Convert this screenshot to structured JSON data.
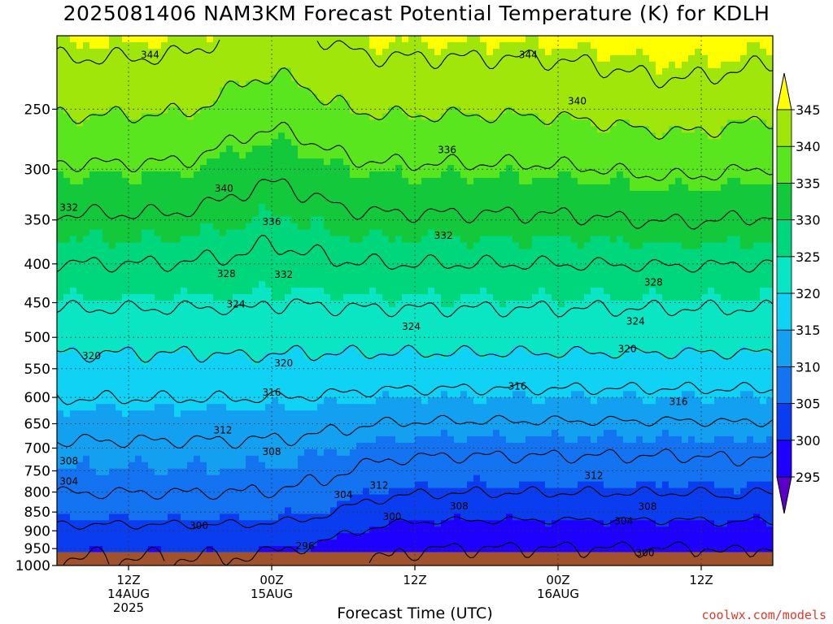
{
  "chart_data": {
    "type": "heatmap",
    "title": "2025081406 NAM3KM Forecast Potential Temperature (K) for KDLH",
    "xlabel": "Forecast Time (UTC)",
    "ylabel": "",
    "watermark": "coolwx.com/models",
    "y_axis": {
      "unit": "hPa",
      "scale": "log",
      "range": [
        1000,
        200
      ],
      "ticks": [
        250,
        300,
        350,
        400,
        450,
        500,
        550,
        600,
        650,
        700,
        750,
        800,
        850,
        900,
        950,
        1000
      ]
    },
    "x_axis": {
      "range_hours": [
        0,
        60
      ],
      "ticks": [
        {
          "hour": 6,
          "lines": [
            "12Z",
            "14AUG",
            "2025"
          ]
        },
        {
          "hour": 18,
          "lines": [
            "00Z",
            "15AUG"
          ]
        },
        {
          "hour": 30,
          "lines": [
            "12Z"
          ]
        },
        {
          "hour": 42,
          "lines": [
            "00Z",
            "16AUG"
          ]
        },
        {
          "hour": 54,
          "lines": [
            "12Z"
          ]
        }
      ]
    },
    "grid": true,
    "colorbar": {
      "placement": "right",
      "levels": [
        295,
        300,
        305,
        310,
        315,
        320,
        325,
        330,
        335,
        340,
        345
      ],
      "colors": [
        "#5a00c8",
        "#1e00ff",
        "#0a3cf0",
        "#1473f0",
        "#14a0f0",
        "#0fd2f5",
        "#0ae6c3",
        "#00d77d",
        "#14c83c",
        "#5ae61e",
        "#a0e60a",
        "#ffff00"
      ]
    },
    "ground": {
      "below_pressure": 960,
      "color": "#a0522d"
    },
    "contours": {
      "interval": 4,
      "levels": [
        296,
        300,
        304,
        308,
        312,
        316,
        320,
        324,
        328,
        332,
        336,
        340,
        344
      ],
      "labels": [
        {
          "value": "344",
          "hour": 7.8,
          "p": 212
        },
        {
          "value": "344",
          "hour": 39.5,
          "p": 212
        },
        {
          "value": "340",
          "hour": 43.6,
          "p": 244
        },
        {
          "value": "340",
          "hour": 14,
          "p": 318
        },
        {
          "value": "336",
          "hour": 32.7,
          "p": 283
        },
        {
          "value": "336",
          "hour": 18,
          "p": 352
        },
        {
          "value": "332",
          "hour": 1,
          "p": 337
        },
        {
          "value": "332",
          "hour": 32.4,
          "p": 367
        },
        {
          "value": "332",
          "hour": 19,
          "p": 413
        },
        {
          "value": "328",
          "hour": 14.2,
          "p": 412
        },
        {
          "value": "328",
          "hour": 50,
          "p": 423
        },
        {
          "value": "324",
          "hour": 15,
          "p": 452
        },
        {
          "value": "324",
          "hour": 29.7,
          "p": 484
        },
        {
          "value": "324",
          "hour": 48.5,
          "p": 476
        },
        {
          "value": "320",
          "hour": 2.9,
          "p": 529
        },
        {
          "value": "320",
          "hour": 19,
          "p": 541
        },
        {
          "value": "320",
          "hour": 47.8,
          "p": 518
        },
        {
          "value": "316",
          "hour": 18,
          "p": 591
        },
        {
          "value": "316",
          "hour": 38.6,
          "p": 580
        },
        {
          "value": "316",
          "hour": 52.1,
          "p": 608
        },
        {
          "value": "312",
          "hour": 13.9,
          "p": 663
        },
        {
          "value": "312",
          "hour": 27,
          "p": 784
        },
        {
          "value": "312",
          "hour": 45,
          "p": 761
        },
        {
          "value": "308",
          "hour": 1,
          "p": 728
        },
        {
          "value": "308",
          "hour": 18,
          "p": 708
        },
        {
          "value": "308",
          "hour": 33.7,
          "p": 835
        },
        {
          "value": "308",
          "hour": 49.5,
          "p": 836
        },
        {
          "value": "304",
          "hour": 1,
          "p": 775
        },
        {
          "value": "304",
          "hour": 24,
          "p": 807
        },
        {
          "value": "304",
          "hour": 47.5,
          "p": 874
        },
        {
          "value": "300",
          "hour": 11.9,
          "p": 886
        },
        {
          "value": "300",
          "hour": 28.1,
          "p": 862
        },
        {
          "value": "300",
          "hour": 49.3,
          "p": 962
        },
        {
          "value": "296",
          "hour": 20.8,
          "p": 942
        }
      ]
    }
  }
}
